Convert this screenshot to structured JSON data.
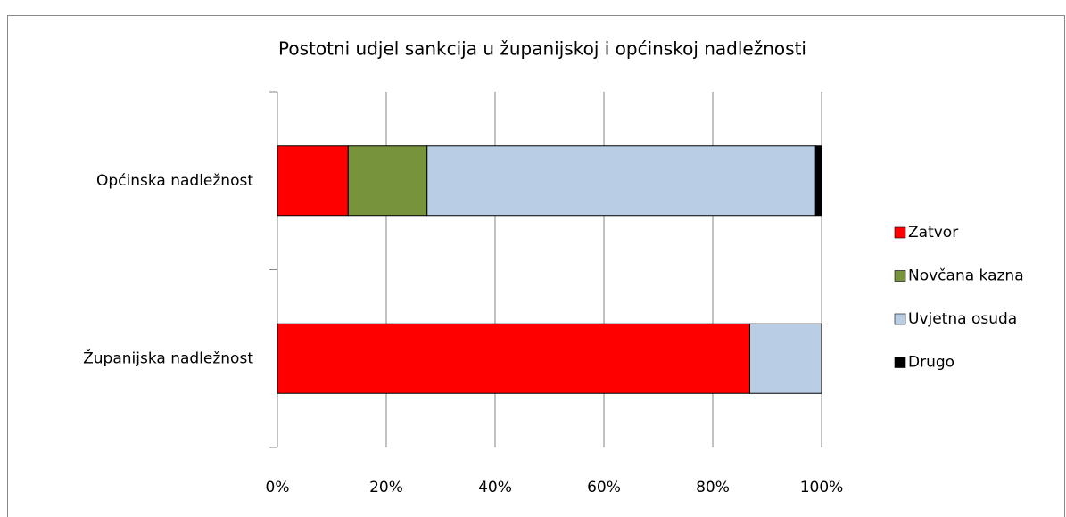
{
  "chart_data": {
    "type": "stacked_bar_horizontal",
    "title": "Postotni udjel sankcija u županijskoj i općinskoj nadležnosti",
    "categories": [
      "Općinska nadležnost",
      "Županijska nadležnost"
    ],
    "series": [
      {
        "name": "Zatvor",
        "color": "#ff0000",
        "values": [
          13,
          86.8
        ]
      },
      {
        "name": "Novčana kazna",
        "color": "#77933c",
        "values": [
          14.5,
          0
        ]
      },
      {
        "name": "Uvjetna osuda",
        "color": "#b9cde5",
        "values": [
          71.4,
          13.2
        ]
      },
      {
        "name": "Drugo",
        "color": "#000000",
        "values": [
          1.1,
          0
        ]
      }
    ],
    "xlim": [
      0,
      100
    ],
    "xticks": [
      {
        "value": 0,
        "label": "0%"
      },
      {
        "value": 20,
        "label": "20%"
      },
      {
        "value": 40,
        "label": "40%"
      },
      {
        "value": 60,
        "label": "60%"
      },
      {
        "value": 80,
        "label": "80%"
      },
      {
        "value": 100,
        "label": "100%"
      }
    ],
    "grid": true,
    "legend": "right"
  }
}
